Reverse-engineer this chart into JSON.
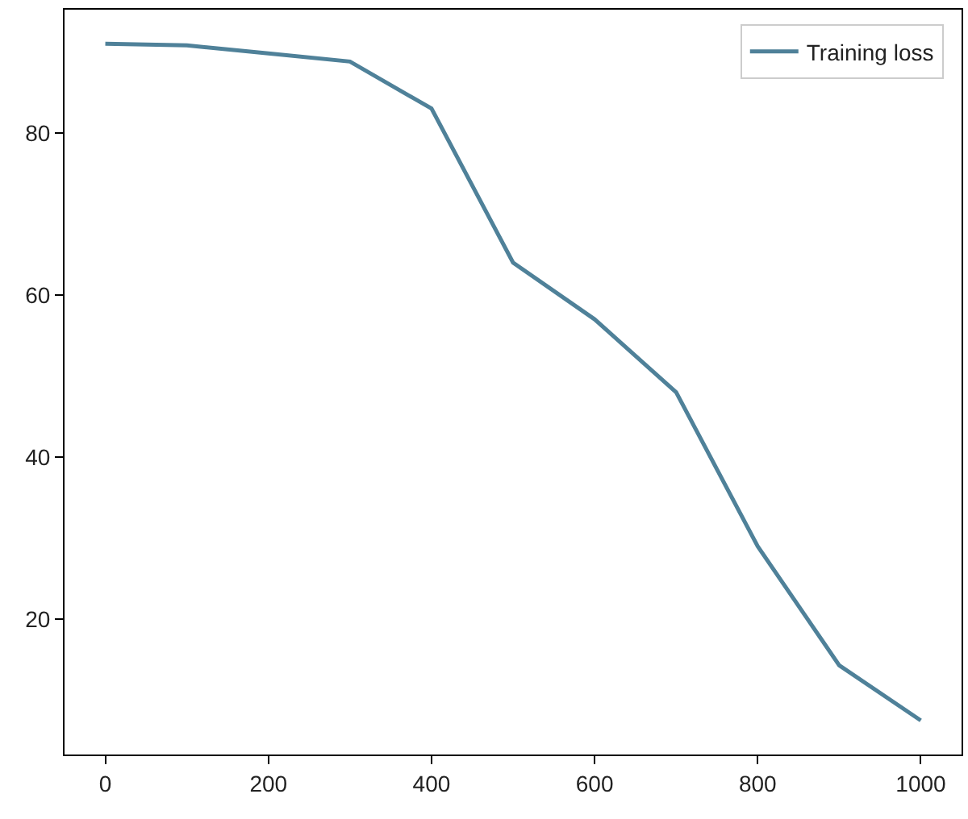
{
  "chart_data": {
    "type": "line",
    "x": [
      0,
      100,
      200,
      300,
      400,
      500,
      600,
      700,
      800,
      900,
      1000
    ],
    "series": [
      {
        "name": "Training loss",
        "color": "#4f8199",
        "values": [
          91,
          90.8,
          89.8,
          88.8,
          83,
          64,
          57,
          48,
          29,
          14.3,
          7.5
        ]
      }
    ],
    "xlim": [
      -50,
      1050
    ],
    "ylim": [
      3.3,
      95.2
    ],
    "xticks": [
      0,
      200,
      400,
      600,
      800,
      1000
    ],
    "yticks": [
      20,
      40,
      60,
      80
    ],
    "grid": false,
    "legend": "top right",
    "marker": "none",
    "line_style": "solid"
  }
}
